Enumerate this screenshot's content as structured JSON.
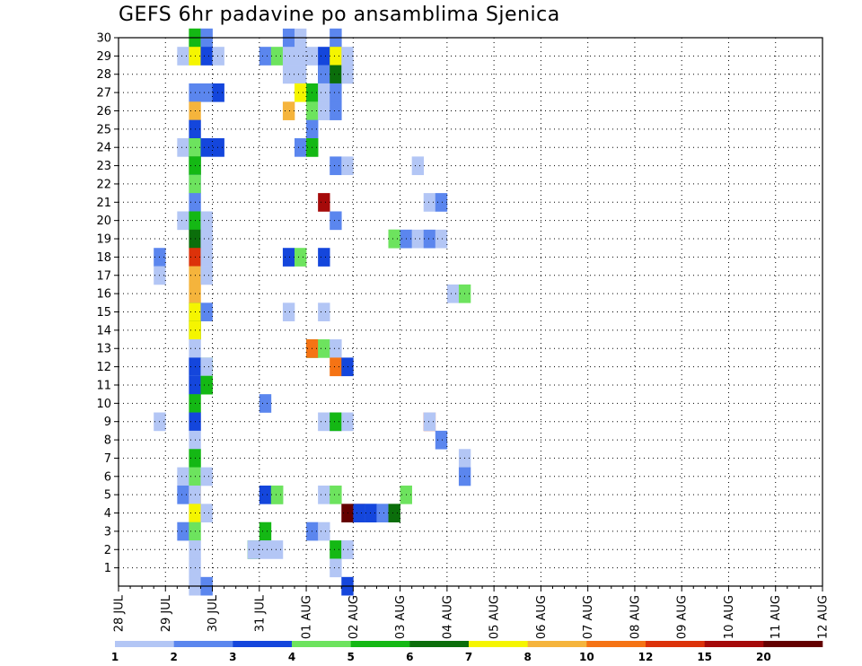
{
  "chart_data": {
    "type": "heatmap",
    "title": "GEFS 6hr padavine po ansamblima Sjenica",
    "xlabel": "",
    "ylabel": "",
    "x_ticks": [
      "28 JUL",
      "29 JUL",
      "30 JUL",
      "31 JUL",
      "01 AUG",
      "02 AUG",
      "03 AUG",
      "04 AUG",
      "05 AUG",
      "06 AUG",
      "07 AUG",
      "08 AUG",
      "09 AUG",
      "10 AUG",
      "11 AUG",
      "12 AUG"
    ],
    "y_ticks": [
      1,
      2,
      3,
      4,
      5,
      6,
      7,
      8,
      9,
      10,
      11,
      12,
      13,
      14,
      15,
      16,
      17,
      18,
      19,
      20,
      21,
      22,
      23,
      24,
      25,
      26,
      27,
      28,
      29,
      30
    ],
    "xlim_days": [
      0,
      15
    ],
    "ylim": [
      0,
      30
    ],
    "x_step_hours": 6,
    "grid": true,
    "colorbar": {
      "levels": [
        "1",
        "2",
        "3",
        "4",
        "5",
        "6",
        "7",
        "8",
        "10",
        "12",
        "15",
        "20"
      ],
      "colors": [
        "#b3c6f5",
        "#5b86ee",
        "#1446dc",
        "#6de35e",
        "#14b814",
        "#0b6e0b",
        "#f5f500",
        "#f5b43c",
        "#f57314",
        "#dc320a",
        "#a50a0a",
        "#640000"
      ]
    },
    "cells": [
      [
        30,
        6,
        3
      ],
      [
        30,
        6,
        4
      ],
      [
        30,
        7,
        0
      ],
      [
        30,
        7,
        1
      ],
      [
        30,
        14,
        1
      ],
      [
        30,
        15,
        0
      ],
      [
        30,
        18,
        0
      ],
      [
        30,
        18,
        1
      ],
      [
        29,
        5,
        0
      ],
      [
        29,
        6,
        6
      ],
      [
        29,
        7,
        2
      ],
      [
        29,
        8,
        0
      ],
      [
        29,
        12,
        1
      ],
      [
        29,
        13,
        3
      ],
      [
        29,
        14,
        0
      ],
      [
        29,
        15,
        0
      ],
      [
        29,
        16,
        0
      ],
      [
        29,
        17,
        2
      ],
      [
        29,
        18,
        6
      ],
      [
        29,
        19,
        0
      ],
      [
        28,
        14,
        0
      ],
      [
        28,
        15,
        0
      ],
      [
        28,
        17,
        2
      ],
      [
        28,
        17,
        1
      ],
      [
        28,
        18,
        5
      ],
      [
        28,
        19,
        0
      ],
      [
        27,
        6,
        1
      ],
      [
        27,
        7,
        1
      ],
      [
        27,
        8,
        2
      ],
      [
        27,
        15,
        6
      ],
      [
        27,
        16,
        4
      ],
      [
        27,
        17,
        0
      ],
      [
        27,
        18,
        1
      ],
      [
        26,
        6,
        7
      ],
      [
        26,
        14,
        7
      ],
      [
        26,
        16,
        3
      ],
      [
        26,
        17,
        0
      ],
      [
        26,
        18,
        1
      ],
      [
        25,
        6,
        2
      ],
      [
        25,
        16,
        1
      ],
      [
        24,
        5,
        0
      ],
      [
        24,
        6,
        4
      ],
      [
        24,
        6,
        3
      ],
      [
        24,
        7,
        2
      ],
      [
        24,
        8,
        2
      ],
      [
        24,
        15,
        1
      ],
      [
        24,
        16,
        3
      ],
      [
        24,
        16,
        4
      ],
      [
        23,
        6,
        5
      ],
      [
        23,
        6,
        4
      ],
      [
        23,
        18,
        1
      ],
      [
        23,
        19,
        0
      ],
      [
        23,
        25,
        0
      ],
      [
        22,
        6,
        1
      ],
      [
        22,
        6,
        3
      ],
      [
        21,
        6,
        1
      ],
      [
        21,
        17,
        10
      ],
      [
        21,
        26,
        0
      ],
      [
        21,
        27,
        1
      ],
      [
        20,
        5,
        0
      ],
      [
        20,
        6,
        4
      ],
      [
        20,
        7,
        0
      ],
      [
        20,
        18,
        1
      ],
      [
        19,
        6,
        5
      ],
      [
        19,
        7,
        0
      ],
      [
        19,
        23,
        4
      ],
      [
        19,
        23,
        3
      ],
      [
        19,
        24,
        1
      ],
      [
        19,
        25,
        0
      ],
      [
        19,
        26,
        1
      ],
      [
        19,
        27,
        0
      ],
      [
        18,
        3,
        1
      ],
      [
        18,
        6,
        9
      ],
      [
        18,
        7,
        0
      ],
      [
        18,
        14,
        2
      ],
      [
        18,
        15,
        3
      ],
      [
        18,
        17,
        2
      ],
      [
        17,
        3,
        0
      ],
      [
        17,
        6,
        7
      ],
      [
        17,
        7,
        0
      ],
      [
        16,
        6,
        7
      ],
      [
        16,
        28,
        0
      ],
      [
        16,
        29,
        3
      ],
      [
        15,
        6,
        2
      ],
      [
        15,
        6,
        6
      ],
      [
        15,
        7,
        1
      ],
      [
        15,
        14,
        0
      ],
      [
        15,
        17,
        0
      ],
      [
        14,
        6,
        5
      ],
      [
        14,
        6,
        6
      ],
      [
        13,
        6,
        0
      ],
      [
        13,
        16,
        4
      ],
      [
        13,
        16,
        8
      ],
      [
        13,
        17,
        3
      ],
      [
        13,
        18,
        0
      ],
      [
        12,
        6,
        0
      ],
      [
        12,
        6,
        2
      ],
      [
        12,
        7,
        4
      ],
      [
        12,
        7,
        0
      ],
      [
        12,
        18,
        8
      ],
      [
        12,
        19,
        2
      ],
      [
        11,
        6,
        0
      ],
      [
        11,
        6,
        2
      ],
      [
        11,
        7,
        3
      ],
      [
        11,
        7,
        4
      ],
      [
        10,
        6,
        4
      ],
      [
        10,
        12,
        1
      ],
      [
        9,
        3,
        0
      ],
      [
        9,
        6,
        2
      ],
      [
        9,
        17,
        0
      ],
      [
        9,
        18,
        1
      ],
      [
        9,
        18,
        4
      ],
      [
        9,
        19,
        0
      ],
      [
        9,
        26,
        9
      ],
      [
        9,
        26,
        0
      ],
      [
        8,
        6,
        0
      ],
      [
        8,
        27,
        1
      ],
      [
        7,
        6,
        4
      ],
      [
        7,
        29,
        0
      ],
      [
        6,
        5,
        0
      ],
      [
        6,
        6,
        3
      ],
      [
        6,
        7,
        0
      ],
      [
        6,
        29,
        1
      ],
      [
        5,
        5,
        1
      ],
      [
        5,
        6,
        7
      ],
      [
        5,
        6,
        0
      ],
      [
        5,
        12,
        2
      ],
      [
        5,
        13,
        4
      ],
      [
        5,
        13,
        3
      ],
      [
        5,
        17,
        0
      ],
      [
        5,
        18,
        3
      ],
      [
        5,
        24,
        3
      ],
      [
        4,
        6,
        0
      ],
      [
        4,
        6,
        6
      ],
      [
        4,
        7,
        0
      ],
      [
        4,
        19,
        11
      ],
      [
        4,
        20,
        10
      ],
      [
        4,
        20,
        2
      ],
      [
        4,
        21,
        1
      ],
      [
        4,
        21,
        2
      ],
      [
        4,
        22,
        0
      ],
      [
        4,
        22,
        1
      ],
      [
        4,
        23,
        5
      ],
      [
        3,
        5,
        1
      ],
      [
        3,
        6,
        3
      ],
      [
        3,
        12,
        4
      ],
      [
        3,
        16,
        1
      ],
      [
        3,
        17,
        0
      ],
      [
        2,
        6,
        0
      ],
      [
        2,
        11,
        4
      ],
      [
        2,
        11,
        0
      ],
      [
        2,
        12,
        0
      ],
      [
        2,
        13,
        0
      ],
      [
        2,
        18,
        4
      ],
      [
        2,
        19,
        0
      ],
      [
        2,
        19,
        0
      ],
      [
        1,
        6,
        0
      ],
      [
        1,
        18,
        0
      ],
      [
        0,
        6,
        0
      ],
      [
        0,
        7,
        1
      ],
      [
        0,
        19,
        2
      ]
    ]
  }
}
